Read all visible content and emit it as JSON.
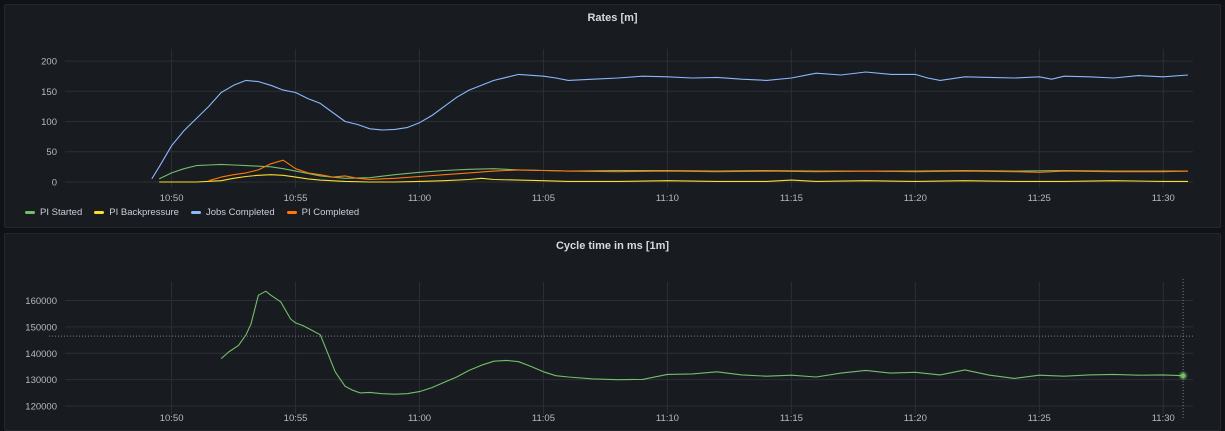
{
  "chart_data": [
    {
      "type": "line",
      "title": "Rates [m]",
      "xlabel": "",
      "ylabel": "",
      "x_ticks": [
        "10:50",
        "10:55",
        "11:00",
        "11:05",
        "11:10",
        "11:15",
        "11:20",
        "11:25",
        "11:30"
      ],
      "x_tick_minutes": [
        50,
        55,
        60,
        65,
        70,
        75,
        80,
        85,
        90
      ],
      "xlim": [
        45.7,
        91.2
      ],
      "y_ticks": [
        0,
        50,
        100,
        150,
        200
      ],
      "ylim": [
        -10,
        220
      ],
      "grid": true,
      "legend_position": "bottom-left",
      "series": [
        {
          "name": "PI Started",
          "color": "#73bf69",
          "x": [
            49.5,
            50,
            50.5,
            51,
            51.5,
            52,
            52.5,
            53,
            53.5,
            54,
            54.5,
            55,
            55.5,
            56,
            57,
            58,
            59,
            60,
            61,
            62,
            63,
            64,
            65,
            66,
            68,
            70,
            72,
            74,
            76,
            78,
            80,
            82,
            84,
            86,
            88,
            90,
            91
          ],
          "y": [
            5,
            15,
            22,
            27,
            28,
            29,
            28,
            27,
            26,
            25,
            22,
            18,
            14,
            10,
            6,
            7,
            12,
            16,
            19,
            21,
            22,
            20,
            19,
            18,
            19,
            19,
            18,
            19,
            18,
            18,
            18,
            19,
            18,
            19,
            18,
            18,
            18
          ]
        },
        {
          "name": "PI Backpressure",
          "color": "#fade2a",
          "x": [
            49.5,
            50,
            51,
            52,
            52.5,
            53,
            53.5,
            54,
            54.5,
            55,
            55.5,
            56,
            57,
            58,
            59,
            60,
            61,
            62,
            62.5,
            63,
            64,
            65,
            66,
            68,
            70,
            72,
            74,
            75,
            76,
            78,
            80,
            82,
            84,
            86,
            88,
            90,
            91
          ],
          "y": [
            0,
            0,
            0,
            2,
            6,
            9,
            11,
            12,
            11,
            8,
            5,
            3,
            1,
            0,
            0,
            1,
            2,
            4,
            6,
            4,
            3,
            2,
            1,
            1,
            2,
            1,
            1,
            3,
            1,
            2,
            1,
            2,
            1,
            1,
            2,
            1,
            1
          ]
        },
        {
          "name": "Jobs Completed",
          "color": "#8ab8ff",
          "x": [
            49.2,
            49.5,
            50,
            50.5,
            51,
            51.5,
            52,
            52.5,
            53,
            53.5,
            54,
            54.5,
            55,
            55.5,
            56,
            56.5,
            57,
            57.5,
            58,
            58.5,
            59,
            59.5,
            60,
            60.5,
            61,
            61.5,
            62,
            63,
            64,
            65,
            65.5,
            66,
            67,
            68,
            69,
            70,
            71,
            72,
            73,
            74,
            75,
            76,
            77,
            78,
            79,
            80,
            80.5,
            81,
            82,
            83,
            84,
            85,
            85.5,
            86,
            87,
            88,
            89,
            90,
            91
          ],
          "y": [
            5,
            25,
            60,
            85,
            105,
            125,
            148,
            160,
            168,
            166,
            160,
            152,
            148,
            138,
            130,
            115,
            100,
            95,
            88,
            86,
            87,
            90,
            98,
            110,
            125,
            140,
            152,
            168,
            178,
            175,
            172,
            168,
            170,
            172,
            175,
            174,
            172,
            173,
            170,
            168,
            172,
            180,
            177,
            182,
            178,
            178,
            172,
            168,
            174,
            173,
            172,
            174,
            170,
            175,
            174,
            172,
            176,
            174,
            177
          ]
        },
        {
          "name": "PI Completed",
          "color": "#ff780a",
          "x": [
            51.5,
            52,
            52.5,
            53,
            53.5,
            54,
            54.5,
            55,
            55.5,
            56,
            56.5,
            57,
            57.5,
            58,
            59,
            60,
            61,
            62,
            63,
            64,
            65,
            66,
            68,
            70,
            72,
            74,
            76,
            78,
            80,
            82,
            84,
            85,
            86,
            88,
            90,
            91
          ],
          "y": [
            2,
            8,
            12,
            15,
            20,
            30,
            36,
            22,
            15,
            12,
            8,
            10,
            6,
            4,
            6,
            9,
            12,
            15,
            18,
            20,
            19,
            18,
            17,
            18,
            17,
            18,
            17,
            18,
            17,
            18,
            17,
            16,
            18,
            17,
            17,
            18
          ]
        }
      ]
    },
    {
      "type": "line",
      "title": "Cycle time in ms [1m]",
      "xlabel": "",
      "ylabel": "",
      "x_ticks": [
        "10:50",
        "10:55",
        "11:00",
        "11:05",
        "11:10",
        "11:15",
        "11:20",
        "11:25",
        "11:30"
      ],
      "x_tick_minutes": [
        50,
        55,
        60,
        65,
        70,
        75,
        80,
        85,
        90
      ],
      "xlim": [
        45.7,
        91.2
      ],
      "y_ticks": [
        120000,
        130000,
        140000,
        150000,
        160000
      ],
      "ylim": [
        117000,
        167000
      ],
      "grid": true,
      "crosshair": {
        "x_minute": 90.8,
        "y_value": 146500
      },
      "series": [
        {
          "name": "Cycle time",
          "color": "#73bf69",
          "x": [
            52,
            52.3,
            52.7,
            53,
            53.2,
            53.5,
            53.8,
            54,
            54.4,
            54.8,
            55,
            55.3,
            55.6,
            56,
            56.3,
            56.6,
            57,
            57.3,
            57.6,
            58,
            58.5,
            59,
            59.5,
            60,
            60.5,
            61,
            61.5,
            62,
            62.5,
            63,
            63.5,
            64,
            64.5,
            65,
            65.5,
            66,
            67,
            68,
            69,
            70,
            71,
            72,
            73,
            74,
            75,
            76,
            77,
            78,
            79,
            80,
            81,
            82,
            83,
            84,
            85,
            86,
            87,
            88,
            89,
            90,
            90.8
          ],
          "y": [
            138000,
            140500,
            143000,
            147000,
            151000,
            162000,
            163500,
            162000,
            159500,
            153000,
            151500,
            150500,
            149000,
            147000,
            140000,
            133000,
            127500,
            126000,
            125000,
            125200,
            124700,
            124500,
            124700,
            125500,
            127000,
            129000,
            131000,
            133500,
            135500,
            137000,
            137300,
            136800,
            135000,
            133000,
            131500,
            131000,
            130300,
            130000,
            130100,
            132000,
            132200,
            133000,
            131800,
            131300,
            131700,
            131000,
            132500,
            133500,
            132500,
            132800,
            131800,
            133700,
            131700,
            130500,
            131700,
            131300,
            131800,
            132000,
            131700,
            131800,
            131500
          ]
        }
      ]
    }
  ]
}
